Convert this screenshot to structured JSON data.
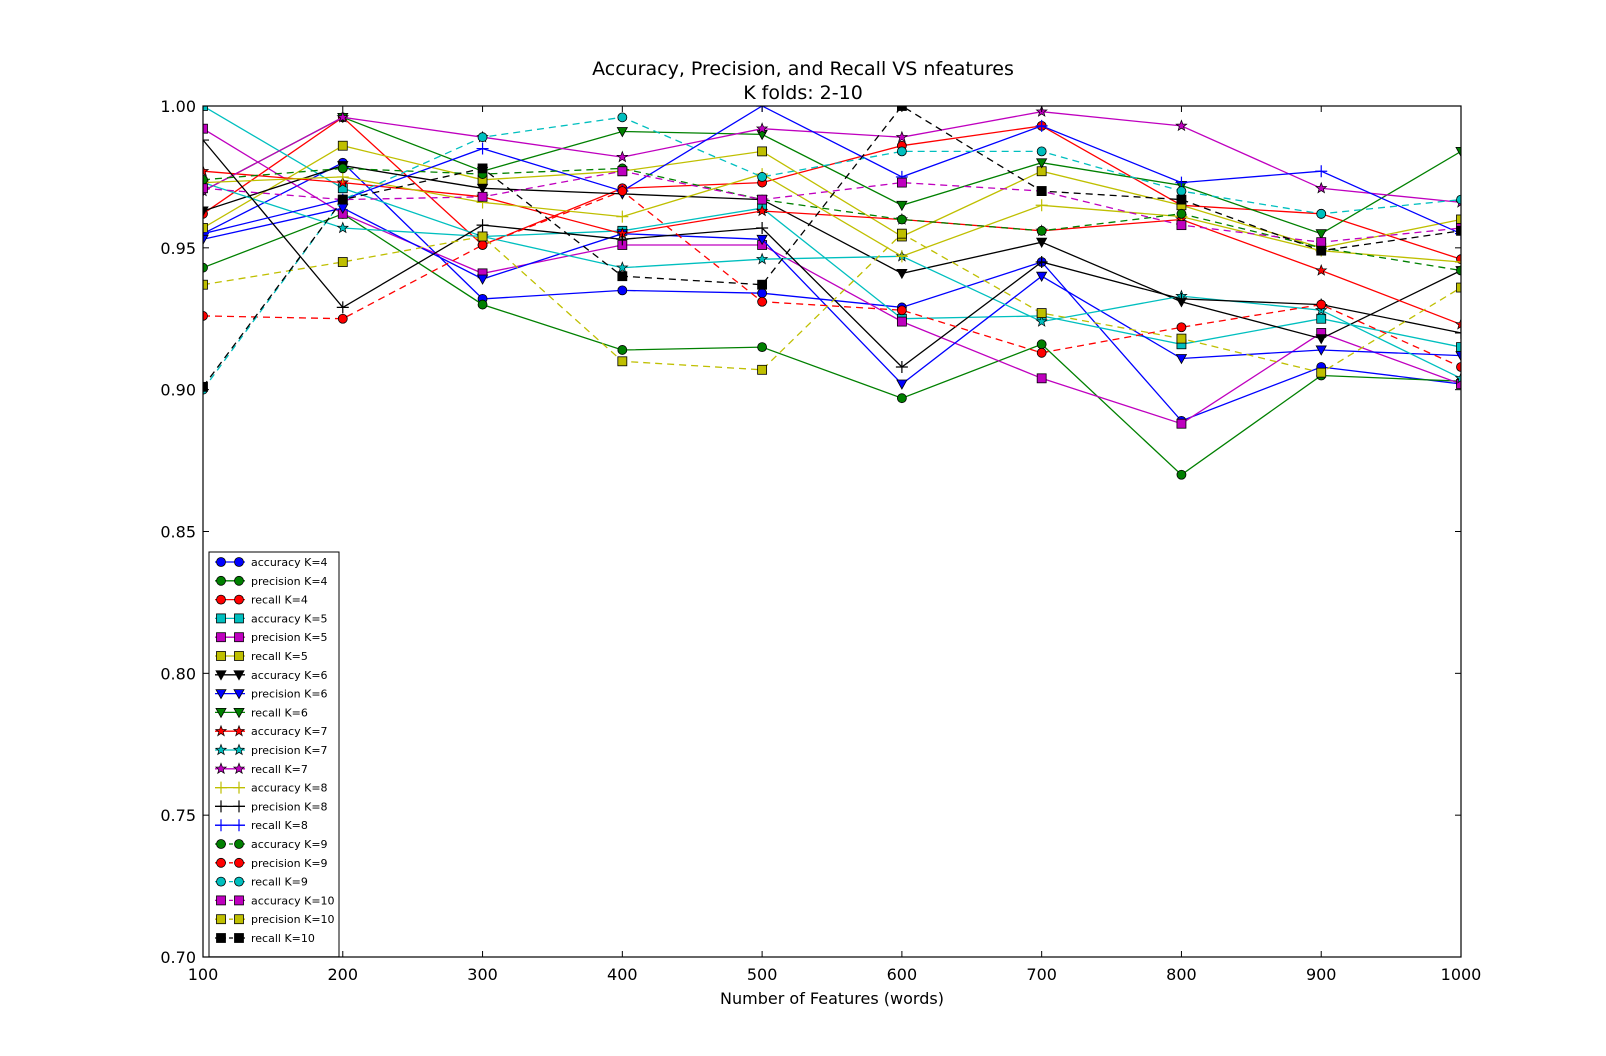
{
  "chart_data": {
    "type": "line",
    "title": "Accuracy, Precision, and Recall VS nfeatures",
    "subtitle": "K folds: 2-10",
    "xlabel": "Number of Features (words)",
    "ylabel": "",
    "xlim": [
      100,
      1000
    ],
    "ylim": [
      0.7,
      1.0
    ],
    "x": [
      100,
      200,
      300,
      400,
      500,
      600,
      700,
      800,
      900,
      1000
    ],
    "xticks": [
      "100",
      "200",
      "300",
      "400",
      "500",
      "600",
      "700",
      "800",
      "900",
      "1000"
    ],
    "yticks": [
      "0.70",
      "0.75",
      "0.80",
      "0.85",
      "0.90",
      "0.95",
      "1.00"
    ],
    "grid": false,
    "legend_position": "lower-left",
    "series": [
      {
        "name": "accuracy K=4",
        "color": "#0000ff",
        "dash": false,
        "marker": "circle",
        "values": [
          0.955,
          0.98,
          0.932,
          0.935,
          0.934,
          0.929,
          0.945,
          0.889,
          0.908,
          0.902
        ]
      },
      {
        "name": "precision K=4",
        "color": "#008000",
        "dash": false,
        "marker": "circle",
        "values": [
          0.943,
          0.962,
          0.93,
          0.914,
          0.915,
          0.897,
          0.916,
          0.87,
          0.905,
          0.903
        ]
      },
      {
        "name": "recall K=4",
        "color": "#ff0000",
        "dash": false,
        "marker": "circle",
        "values": [
          0.962,
          0.996,
          0.951,
          0.971,
          0.973,
          0.986,
          0.993,
          0.965,
          0.962,
          0.946
        ]
      },
      {
        "name": "accuracy K=5",
        "color": "#00bfbf",
        "dash": false,
        "marker": "square",
        "values": [
          1.0,
          0.971,
          0.954,
          0.956,
          0.964,
          0.925,
          0.926,
          0.916,
          0.925,
          0.915
        ]
      },
      {
        "name": "precision K=5",
        "color": "#bf00bf",
        "dash": false,
        "marker": "square",
        "values": [
          0.992,
          0.962,
          0.941,
          0.951,
          0.951,
          0.924,
          0.904,
          0.888,
          0.92,
          0.902
        ]
      },
      {
        "name": "recall K=5",
        "color": "#bfbf00",
        "dash": false,
        "marker": "square",
        "values": [
          0.957,
          0.986,
          0.974,
          0.977,
          0.984,
          0.954,
          0.977,
          0.965,
          0.95,
          0.96
        ]
      },
      {
        "name": "accuracy K=6",
        "color": "#000000",
        "dash": false,
        "marker": "triangle",
        "values": [
          0.963,
          0.979,
          0.971,
          0.969,
          0.967,
          0.941,
          0.952,
          0.931,
          0.918,
          0.942
        ]
      },
      {
        "name": "precision K=6",
        "color": "#0000ff",
        "dash": false,
        "marker": "triangle",
        "values": [
          0.953,
          0.964,
          0.939,
          0.955,
          0.953,
          0.902,
          0.94,
          0.911,
          0.914,
          0.912
        ]
      },
      {
        "name": "recall K=6",
        "color": "#008000",
        "dash": false,
        "marker": "triangle",
        "values": [
          0.97,
          0.996,
          0.977,
          0.991,
          0.99,
          0.965,
          0.98,
          0.972,
          0.955,
          0.984
        ]
      },
      {
        "name": "accuracy K=7",
        "color": "#ff0000",
        "dash": false,
        "marker": "star",
        "values": [
          0.977,
          0.973,
          0.968,
          0.955,
          0.963,
          0.96,
          0.956,
          0.96,
          0.942,
          0.923
        ]
      },
      {
        "name": "precision K=7",
        "color": "#00bfbf",
        "dash": false,
        "marker": "star",
        "values": [
          0.973,
          0.957,
          0.954,
          0.943,
          0.946,
          0.947,
          0.924,
          0.933,
          0.928,
          0.904
        ]
      },
      {
        "name": "recall K=7",
        "color": "#bf00bf",
        "dash": false,
        "marker": "star",
        "values": [
          0.97,
          0.996,
          0.989,
          0.982,
          0.992,
          0.989,
          0.998,
          0.993,
          0.971,
          0.966
        ]
      },
      {
        "name": "accuracy K=8",
        "color": "#bfbf00",
        "dash": false,
        "marker": "plus",
        "values": [
          0.973,
          0.975,
          0.966,
          0.961,
          0.976,
          0.947,
          0.965,
          0.961,
          0.949,
          0.945
        ]
      },
      {
        "name": "precision K=8",
        "color": "#000000",
        "dash": false,
        "marker": "plus",
        "values": [
          0.988,
          0.929,
          0.958,
          0.953,
          0.957,
          0.908,
          0.945,
          0.932,
          0.93,
          0.92
        ]
      },
      {
        "name": "recall K=8",
        "color": "#0000ff",
        "dash": false,
        "marker": "plus",
        "values": [
          0.955,
          0.967,
          0.985,
          0.97,
          1.0,
          0.975,
          0.993,
          0.973,
          0.977,
          0.955
        ]
      },
      {
        "name": "accuracy K=9",
        "color": "#008000",
        "dash": true,
        "marker": "circle",
        "values": [
          0.974,
          0.978,
          0.976,
          0.978,
          0.967,
          0.96,
          0.956,
          0.962,
          0.95,
          0.942
        ]
      },
      {
        "name": "precision K=9",
        "color": "#ff0000",
        "dash": true,
        "marker": "circle",
        "values": [
          0.926,
          0.925,
          0.951,
          0.97,
          0.931,
          0.928,
          0.913,
          0.922,
          0.93,
          0.908
        ]
      },
      {
        "name": "recall K=9",
        "color": "#00bfbf",
        "dash": true,
        "marker": "circle",
        "values": [
          0.9,
          0.967,
          0.989,
          0.996,
          0.975,
          0.984,
          0.984,
          0.97,
          0.962,
          0.967
        ]
      },
      {
        "name": "accuracy K=10",
        "color": "#bf00bf",
        "dash": true,
        "marker": "square",
        "values": [
          0.971,
          0.967,
          0.968,
          0.977,
          0.967,
          0.973,
          0.97,
          0.958,
          0.952,
          0.957
        ]
      },
      {
        "name": "precision K=10",
        "color": "#bfbf00",
        "dash": true,
        "marker": "square",
        "values": [
          0.937,
          0.945,
          0.954,
          0.91,
          0.907,
          0.955,
          0.927,
          0.918,
          0.906,
          0.936
        ]
      },
      {
        "name": "recall K=10",
        "color": "#000000",
        "dash": true,
        "marker": "square",
        "values": [
          0.901,
          0.967,
          0.978,
          0.94,
          0.937,
          1.0,
          0.97,
          0.967,
          0.949,
          0.956
        ]
      }
    ]
  }
}
